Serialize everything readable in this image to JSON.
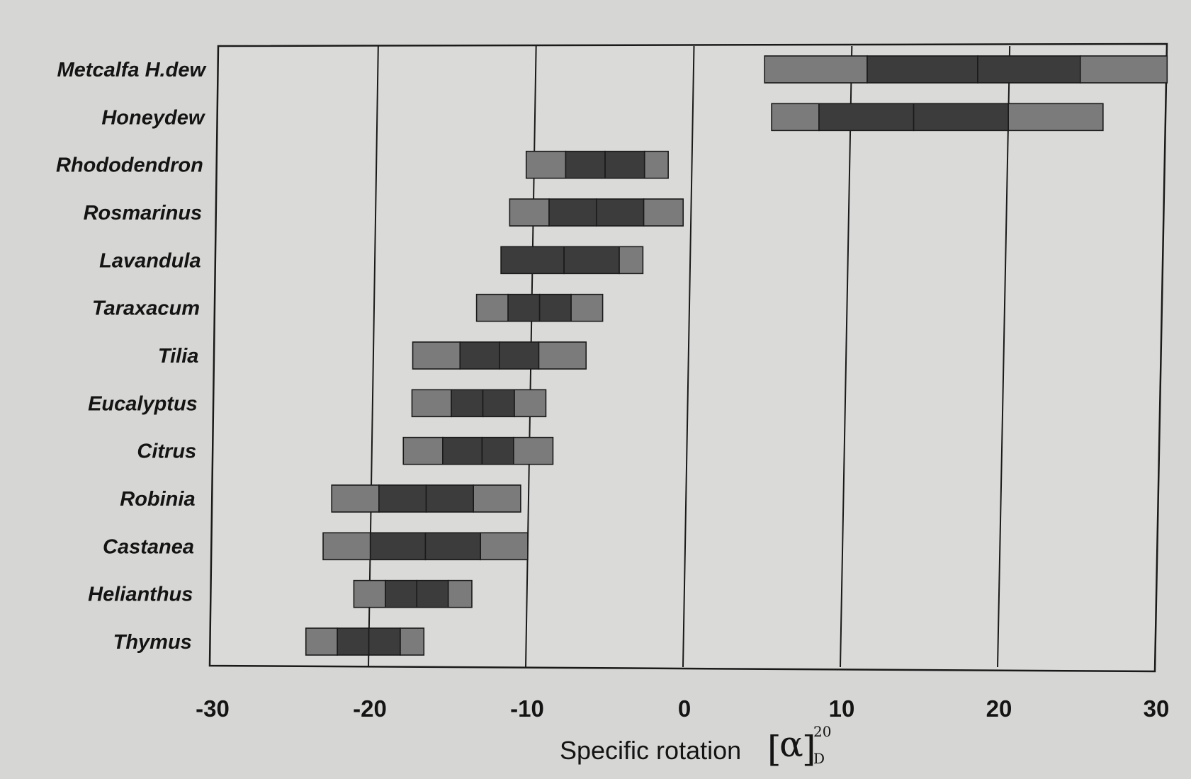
{
  "chart_data": {
    "type": "range-bar",
    "title": "",
    "xlabel": "Specific rotation",
    "xlabel_symbol": "α",
    "xlabel_superscript": "20",
    "xlabel_subscript": "D",
    "xlim": [
      -30,
      30
    ],
    "xticks": [
      "-30",
      "-20",
      "-10",
      "0",
      "10",
      "20",
      "30"
    ],
    "grid": "vertical lines at each tick",
    "legend": "none",
    "colors": {
      "outer": "#7b7b7b",
      "inner": "#3c3c3c",
      "stroke": "#1a1a1a",
      "plot_bg": "#dadad8"
    },
    "categories": [
      "Metcalfa H.dew",
      "Honeydew",
      "Rhododendron",
      "Rosmarinus",
      "Lavandula",
      "Taraxacum",
      "Tilia",
      "Eucalyptus",
      "Citrus",
      "Robinia",
      "Castanea",
      "Helianthus",
      "Thymus"
    ],
    "bars": [
      {
        "name": "Metcalfa H.dew",
        "min": 4.5,
        "q1": 11,
        "median": 18,
        "q3": 24.5,
        "max": 30
      },
      {
        "name": "Honeydew",
        "min": 5,
        "q1": 8,
        "median": 14,
        "q3": 20,
        "max": 26
      },
      {
        "name": "Rhododendron",
        "min": -10.5,
        "q1": -8,
        "median": -5.5,
        "q3": -3,
        "max": -1.5
      },
      {
        "name": "Rosmarinus",
        "min": -11.5,
        "q1": -9,
        "median": -6,
        "q3": -3,
        "max": -0.5
      },
      {
        "name": "Lavandula",
        "min": -12,
        "q1": -12,
        "median": -8,
        "q3": -4.5,
        "max": -3
      },
      {
        "name": "Taraxacum",
        "min": -13.5,
        "q1": -11.5,
        "median": -9.5,
        "q3": -7.5,
        "max": -5.5
      },
      {
        "name": "Tilia",
        "min": -17.5,
        "q1": -14.5,
        "median": -12,
        "q3": -9.5,
        "max": -6.5
      },
      {
        "name": "Eucalyptus",
        "min": -17.5,
        "q1": -15,
        "median": -13,
        "q3": -11,
        "max": -9
      },
      {
        "name": "Citrus",
        "min": -18,
        "q1": -15.5,
        "median": -13,
        "q3": -11,
        "max": -8.5
      },
      {
        "name": "Robinia",
        "min": -22.5,
        "q1": -19.5,
        "median": -16.5,
        "q3": -13.5,
        "max": -10.5
      },
      {
        "name": "Castanea",
        "min": -23,
        "q1": -20,
        "median": -16.5,
        "q3": -13,
        "max": -10
      },
      {
        "name": "Helianthus",
        "min": -21,
        "q1": -19,
        "median": -17,
        "q3": -15,
        "max": -13.5
      },
      {
        "name": "Thymus",
        "min": -24,
        "q1": -22,
        "median": -20,
        "q3": -18,
        "max": -16.5
      }
    ]
  }
}
